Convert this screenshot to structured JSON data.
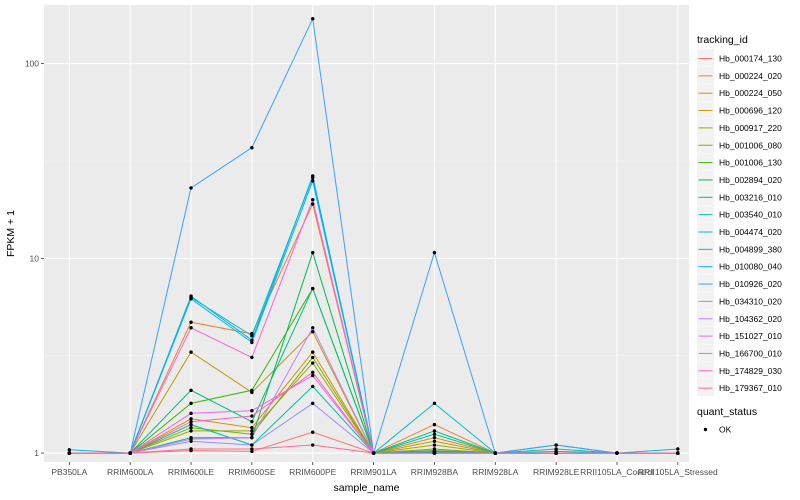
{
  "chart_data": {
    "type": "line",
    "xlabel": "sample_name",
    "ylabel": "FPKM + 1",
    "y_scale": "log10",
    "ylim": [
      0.9,
      200
    ],
    "y_ticks": [
      1,
      10,
      100
    ],
    "y_tick_labels": [
      "1",
      "10",
      "100"
    ],
    "grid": true,
    "legend_position": "right",
    "categories": [
      "PB350LA",
      "RRIM600LA",
      "RRIM600LE",
      "RRIM600SE",
      "RRIM600PE",
      "RRIM901LA",
      "RRIM928BA",
      "RRIM928LA",
      "RRIM928LE",
      "RRII105LA_Control",
      "RRII105LA_Stressed"
    ],
    "legend": {
      "title": "tracking_id",
      "series_names": [
        "Hb_000174_130",
        "Hb_000224_020",
        "Hb_000224_050",
        "Hb_000696_120",
        "Hb_000917_220",
        "Hb_001006_080",
        "Hb_001006_130",
        "Hb_002894_020",
        "Hb_003216_010",
        "Hb_003540_010",
        "Hb_004474_020",
        "Hb_004899_380",
        "Hb_010080_040",
        "Hb_010926_020",
        "Hb_034310_020",
        "Hb_104362_020",
        "Hb_151027_010",
        "Hb_166700_010",
        "Hb_174829_030",
        "Hb_179367_010"
      ],
      "series_colors": [
        "#F8766D",
        "#EA8331",
        "#D89000",
        "#C09B00",
        "#A3A500",
        "#7CAE00",
        "#39B600",
        "#00BB4E",
        "#00BF7D",
        "#00C1A3",
        "#00BFC4",
        "#00BAE0",
        "#00B0F6",
        "#35A2FF",
        "#9590FF",
        "#C77CFF",
        "#E76BF3",
        "#FA62DB",
        "#FF62BC",
        "#FF6C91"
      ]
    },
    "shape_legend": {
      "title": "quant_status",
      "items": [
        "OK"
      ]
    },
    "series": [
      {
        "name": "Hb_000174_130",
        "values": [
          1,
          1,
          1.03,
          1.02,
          1.28,
          1,
          1,
          1,
          1,
          1,
          1
        ]
      },
      {
        "name": "Hb_000224_020",
        "values": [
          1,
          1,
          4.7,
          4.1,
          19.0,
          1,
          1.4,
          1,
          1,
          1,
          1
        ]
      },
      {
        "name": "Hb_000224_050",
        "values": [
          1,
          1,
          1.5,
          1.35,
          3.3,
          1,
          1.2,
          1,
          1,
          1,
          1
        ]
      },
      {
        "name": "Hb_000696_120",
        "values": [
          1,
          1,
          3.3,
          2.05,
          4.2,
          1,
          1.15,
          1,
          1,
          1,
          1
        ]
      },
      {
        "name": "Hb_000917_220",
        "values": [
          1,
          1,
          1.3,
          1.3,
          2.9,
          1,
          1.1,
          1,
          1,
          1,
          1
        ]
      },
      {
        "name": "Hb_001006_080",
        "values": [
          1,
          1,
          1.35,
          1.25,
          3.1,
          1,
          1.05,
          1,
          1,
          1,
          1
        ]
      },
      {
        "name": "Hb_001006_130",
        "values": [
          1,
          1,
          1.8,
          2.1,
          7.0,
          1,
          1.03,
          1,
          1,
          1,
          1
        ]
      },
      {
        "name": "Hb_002894_020",
        "values": [
          1,
          1,
          1.2,
          1.2,
          10.7,
          1,
          1.02,
          1,
          1,
          1,
          1
        ]
      },
      {
        "name": "Hb_003216_010",
        "values": [
          1,
          1,
          2.1,
          1.45,
          7.0,
          1,
          1.3,
          1,
          1,
          1,
          1
        ]
      },
      {
        "name": "Hb_003540_010",
        "values": [
          1,
          1,
          1.4,
          1.1,
          2.2,
          1,
          1.25,
          1,
          1.05,
          1,
          1
        ]
      },
      {
        "name": "Hb_004474_020",
        "values": [
          1,
          1,
          6.3,
          4.0,
          26.0,
          1,
          1.8,
          1,
          1.1,
          1,
          1
        ]
      },
      {
        "name": "Hb_004899_380",
        "values": [
          1.04,
          1,
          6.2,
          3.7,
          25.0,
          1,
          1.02,
          1,
          1.02,
          1,
          1.05
        ]
      },
      {
        "name": "Hb_010080_040",
        "values": [
          1,
          1,
          6.4,
          3.8,
          26.5,
          1,
          1.01,
          1,
          1,
          1,
          1
        ]
      },
      {
        "name": "Hb_010926_020",
        "values": [
          1,
          1,
          23.0,
          37.0,
          170.0,
          1,
          10.7,
          1,
          1.1,
          1,
          1
        ]
      },
      {
        "name": "Hb_034310_020",
        "values": [
          1,
          1,
          1.15,
          1.1,
          1.8,
          1,
          1,
          1,
          1,
          1,
          1
        ]
      },
      {
        "name": "Hb_104362_020",
        "values": [
          1,
          1,
          1.18,
          1.2,
          4.4,
          1,
          1,
          1,
          1,
          1,
          1
        ]
      },
      {
        "name": "Hb_151027_010",
        "values": [
          1,
          1,
          1.6,
          1.65,
          2.5,
          1,
          1,
          1,
          1,
          1,
          1
        ]
      },
      {
        "name": "Hb_166700_010",
        "values": [
          1,
          1,
          4.4,
          3.1,
          20.0,
          1,
          1,
          1,
          1,
          1,
          1
        ]
      },
      {
        "name": "Hb_174829_030",
        "values": [
          1,
          1,
          1.45,
          1.55,
          2.6,
          1,
          1,
          1,
          1,
          1,
          1
        ]
      },
      {
        "name": "Hb_179367_010",
        "values": [
          1,
          1,
          1.05,
          1.05,
          1.1,
          1,
          1,
          1,
          1,
          1,
          1
        ]
      }
    ]
  }
}
